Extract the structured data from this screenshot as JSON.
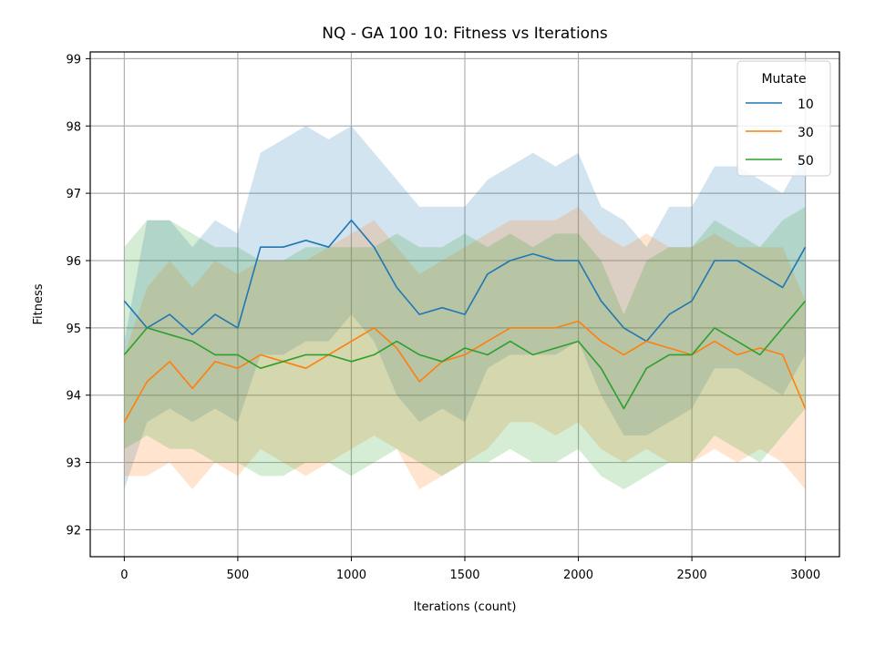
{
  "chart_data": {
    "type": "line",
    "title": "NQ - GA 100 10: Fitness vs Iterations",
    "xlabel": "Iterations (count)",
    "ylabel": "Fitness",
    "xlim": [
      -150,
      3150
    ],
    "ylim": [
      91.6,
      99.1
    ],
    "xticks": [
      0,
      500,
      1000,
      1500,
      2000,
      2500,
      3000
    ],
    "yticks": [
      92,
      93,
      94,
      95,
      96,
      97,
      98,
      99
    ],
    "grid": true,
    "legend": {
      "title": "Mutate",
      "placement": "top-right"
    },
    "colors": {
      "10": "#1f77b4",
      "30": "#ff7f0e",
      "50": "#2ca02c"
    },
    "x": [
      0,
      100,
      200,
      300,
      400,
      500,
      600,
      700,
      800,
      900,
      1000,
      1100,
      1200,
      1300,
      1400,
      1500,
      1600,
      1700,
      1800,
      1900,
      2000,
      2100,
      2200,
      2300,
      2400,
      2500,
      2600,
      2700,
      2800,
      2900,
      3000
    ],
    "series": [
      {
        "name": "10",
        "values": [
          95.4,
          95.0,
          95.2,
          94.9,
          95.2,
          95.0,
          96.2,
          96.2,
          96.3,
          96.2,
          96.6,
          96.2,
          95.6,
          95.2,
          95.3,
          95.2,
          95.8,
          96.0,
          96.1,
          96.0,
          96.0,
          95.4,
          95.0,
          94.8,
          95.2,
          95.4,
          96.0,
          96.0,
          95.8,
          95.6,
          96.2
        ],
        "band": [
          [
            92.6,
            94.8
          ],
          [
            93.6,
            96.6
          ],
          [
            93.8,
            96.6
          ],
          [
            93.6,
            96.2
          ],
          [
            93.8,
            96.6
          ],
          [
            93.6,
            96.4
          ],
          [
            94.6,
            97.6
          ],
          [
            94.6,
            97.8
          ],
          [
            94.8,
            98.0
          ],
          [
            94.8,
            97.8
          ],
          [
            95.2,
            98.0
          ],
          [
            94.8,
            97.6
          ],
          [
            94.0,
            97.2
          ],
          [
            93.6,
            96.8
          ],
          [
            93.8,
            96.8
          ],
          [
            93.6,
            96.8
          ],
          [
            94.4,
            97.2
          ],
          [
            94.6,
            97.4
          ],
          [
            94.6,
            97.6
          ],
          [
            94.6,
            97.4
          ],
          [
            94.8,
            97.6
          ],
          [
            94.0,
            96.8
          ],
          [
            93.4,
            96.6
          ],
          [
            93.4,
            96.2
          ],
          [
            93.6,
            96.8
          ],
          [
            93.8,
            96.8
          ],
          [
            94.4,
            97.4
          ],
          [
            94.4,
            97.4
          ],
          [
            94.2,
            97.2
          ],
          [
            94.0,
            97.0
          ],
          [
            94.6,
            97.6
          ]
        ]
      },
      {
        "name": "30",
        "values": [
          93.6,
          94.2,
          94.5,
          94.1,
          94.5,
          94.4,
          94.6,
          94.5,
          94.4,
          94.6,
          94.8,
          95.0,
          94.7,
          94.2,
          94.5,
          94.6,
          94.8,
          95.0,
          95.0,
          95.0,
          95.1,
          94.8,
          94.6,
          94.8,
          94.7,
          94.6,
          94.8,
          94.6,
          94.7,
          94.6,
          93.8
        ],
        "band": [
          [
            92.8,
            94.6
          ],
          [
            92.8,
            95.6
          ],
          [
            93.0,
            96.0
          ],
          [
            92.6,
            95.6
          ],
          [
            93.0,
            96.0
          ],
          [
            92.8,
            95.8
          ],
          [
            93.2,
            96.0
          ],
          [
            93.0,
            96.0
          ],
          [
            92.8,
            96.0
          ],
          [
            93.0,
            96.2
          ],
          [
            93.2,
            96.4
          ],
          [
            93.4,
            96.6
          ],
          [
            93.2,
            96.2
          ],
          [
            92.6,
            95.8
          ],
          [
            92.8,
            96.0
          ],
          [
            93.0,
            96.2
          ],
          [
            93.2,
            96.4
          ],
          [
            93.6,
            96.6
          ],
          [
            93.6,
            96.6
          ],
          [
            93.4,
            96.6
          ],
          [
            93.6,
            96.8
          ],
          [
            93.2,
            96.4
          ],
          [
            93.0,
            96.2
          ],
          [
            93.2,
            96.4
          ],
          [
            93.0,
            96.2
          ],
          [
            93.0,
            96.2
          ],
          [
            93.2,
            96.4
          ],
          [
            93.0,
            96.2
          ],
          [
            93.2,
            96.2
          ],
          [
            93.0,
            96.2
          ],
          [
            92.6,
            95.4
          ]
        ]
      },
      {
        "name": "50",
        "values": [
          94.6,
          95.0,
          94.9,
          94.8,
          94.6,
          94.6,
          94.4,
          94.5,
          94.6,
          94.6,
          94.5,
          94.6,
          94.8,
          94.6,
          94.5,
          94.7,
          94.6,
          94.8,
          94.6,
          94.7,
          94.8,
          94.4,
          93.8,
          94.4,
          94.6,
          94.6,
          95.0,
          94.8,
          94.6,
          95.0,
          95.4
        ],
        "band": [
          [
            93.2,
            96.2
          ],
          [
            93.4,
            96.6
          ],
          [
            93.2,
            96.6
          ],
          [
            93.2,
            96.4
          ],
          [
            93.0,
            96.2
          ],
          [
            93.0,
            96.2
          ],
          [
            92.8,
            96.0
          ],
          [
            92.8,
            96.0
          ],
          [
            93.0,
            96.2
          ],
          [
            93.0,
            96.2
          ],
          [
            92.8,
            96.2
          ],
          [
            93.0,
            96.2
          ],
          [
            93.2,
            96.4
          ],
          [
            93.0,
            96.2
          ],
          [
            92.8,
            96.2
          ],
          [
            93.0,
            96.4
          ],
          [
            93.0,
            96.2
          ],
          [
            93.2,
            96.4
          ],
          [
            93.0,
            96.2
          ],
          [
            93.0,
            96.4
          ],
          [
            93.2,
            96.4
          ],
          [
            92.8,
            96.0
          ],
          [
            92.6,
            95.2
          ],
          [
            92.8,
            96.0
          ],
          [
            93.0,
            96.2
          ],
          [
            93.0,
            96.2
          ],
          [
            93.4,
            96.6
          ],
          [
            93.2,
            96.4
          ],
          [
            93.0,
            96.2
          ],
          [
            93.4,
            96.6
          ],
          [
            93.8,
            96.8
          ]
        ]
      }
    ]
  }
}
